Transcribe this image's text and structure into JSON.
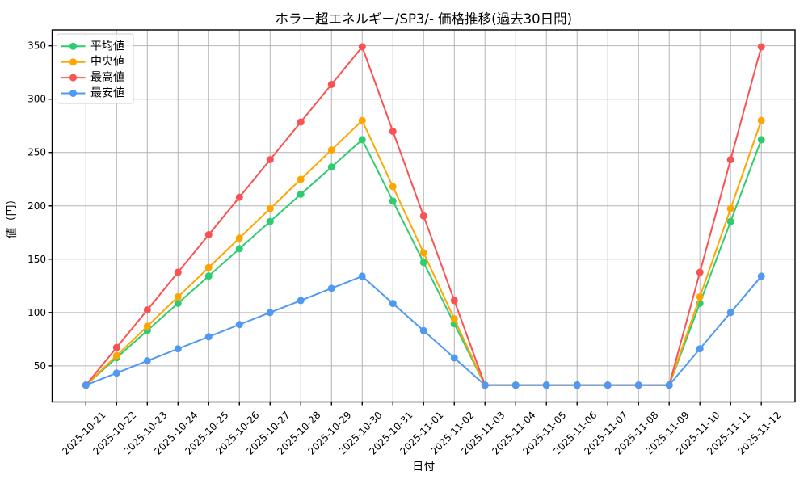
{
  "chart_data": {
    "type": "line",
    "title": "ホラー超エネルギー/SP3/- 価格推移(過去30日間)",
    "xlabel": "日付",
    "ylabel": "値（円）",
    "x": [
      "2025-10-21",
      "2025-10-22",
      "2025-10-23",
      "2025-10-24",
      "2025-10-25",
      "2025-10-26",
      "2025-10-27",
      "2025-10-28",
      "2025-10-29",
      "2025-10-30",
      "2025-10-31",
      "2025-11-01",
      "2025-11-02",
      "2025-11-03",
      "2025-11-04",
      "2025-11-05",
      "2025-11-06",
      "2025-11-07",
      "2025-11-08",
      "2025-11-09",
      "2025-11-10",
      "2025-11-11",
      "2025-11-12"
    ],
    "series": [
      {
        "key": "average",
        "name": "平均値",
        "color": "#2ecc71",
        "values": [
          32,
          57.6,
          83.1,
          108.7,
          134.2,
          159.8,
          185.3,
          210.9,
          236.4,
          262,
          204.5,
          147,
          89.5,
          32,
          32,
          32,
          32,
          32,
          32,
          32,
          108.7,
          185.3,
          262
        ]
      },
      {
        "key": "median",
        "name": "中央値",
        "color": "#ffa502",
        "values": [
          32,
          59.6,
          87.1,
          114.7,
          142.2,
          169.8,
          197.3,
          224.9,
          252.4,
          280,
          218,
          156,
          94,
          32,
          32,
          32,
          32,
          32,
          32,
          32,
          114.7,
          197.3,
          280
        ]
      },
      {
        "key": "highest",
        "name": "最高値",
        "color": "#fa5252",
        "values": [
          32,
          67.2,
          102.4,
          137.7,
          172.9,
          208.1,
          243.3,
          278.6,
          313.8,
          349,
          269.8,
          190.5,
          111.3,
          32,
          32,
          32,
          32,
          32,
          32,
          32,
          137.7,
          243.3,
          349
        ]
      },
      {
        "key": "lowest",
        "name": "最安値",
        "color": "#4f99f2",
        "values": [
          32,
          43.3,
          54.7,
          66,
          77.3,
          88.7,
          100,
          111.3,
          122.7,
          134,
          108.5,
          83,
          57.5,
          32,
          32,
          32,
          32,
          32,
          32,
          32,
          66,
          100,
          134
        ]
      }
    ],
    "ylim": [
      16.2,
      364.9
    ],
    "yticks": [
      50,
      100,
      150,
      200,
      250,
      300,
      350
    ],
    "grid": true,
    "legend_position": "upper left"
  }
}
